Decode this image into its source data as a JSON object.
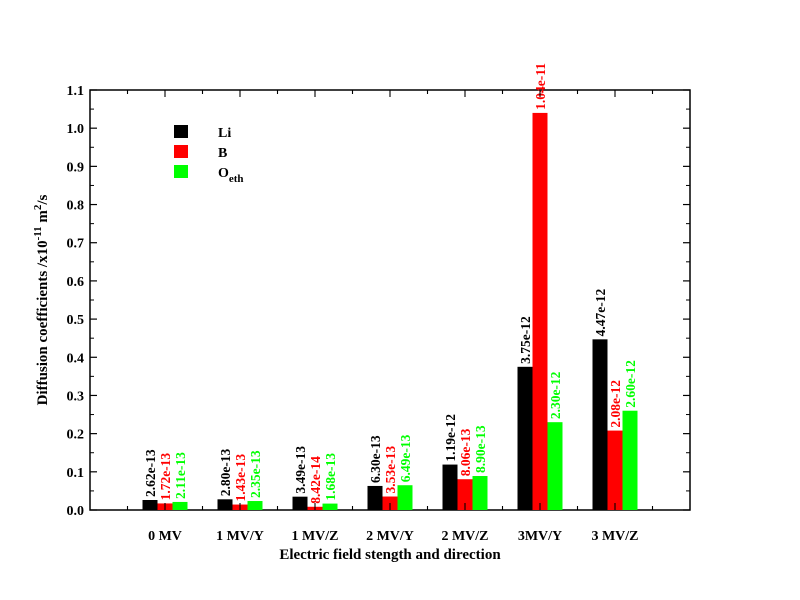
{
  "chart_data": {
    "type": "bar",
    "title": "",
    "xlabel": "Electric field stength and direction",
    "ylabel_main": "Diffusion coefficients /x10",
    "ylabel_exp": "-11",
    "ylabel_unit_base": " m",
    "ylabel_unit_exp": "2",
    "ylabel_unit_tail": "/s",
    "ylim": [
      0,
      1.1
    ],
    "yticks": [
      "0.0",
      "0.1",
      "0.2",
      "0.3",
      "0.4",
      "0.5",
      "0.6",
      "0.7",
      "0.8",
      "0.9",
      "1.0",
      "1.1"
    ],
    "grid": false,
    "legend_position": "top-left",
    "categories": [
      "0 MV",
      "1 MV/Y",
      "1 MV/Z",
      "2 MV/Y",
      "2 MV/Z",
      "3MV/Y",
      "3 MV/Z"
    ],
    "series": [
      {
        "name": "Li",
        "name_base": "Li",
        "name_sub": "",
        "color": "#000000",
        "values": [
          0.0262,
          0.028,
          0.0349,
          0.063,
          0.119,
          0.375,
          0.447
        ],
        "labels": [
          "2.62e-13",
          "2.80e-13",
          "3.49e-13",
          "6.30e-13",
          "1.19e-12",
          "3.75e-12",
          "4.47e-12"
        ]
      },
      {
        "name": "B",
        "name_base": "B",
        "name_sub": "",
        "color": "#ff0000",
        "values": [
          0.0172,
          0.0143,
          0.00842,
          0.0353,
          0.0806,
          1.04,
          0.208
        ],
        "labels": [
          "1.72e-13",
          "1.43e-13",
          "8.42e-14",
          "3.53e-13",
          "8.06e-13",
          "1.04e-11",
          "2.08e-12"
        ]
      },
      {
        "name": "Oeth",
        "name_base": "O",
        "name_sub": "eth",
        "color": "#00ff00",
        "values": [
          0.0211,
          0.0235,
          0.0168,
          0.0649,
          0.089,
          0.23,
          0.26
        ],
        "labels": [
          "2.11e-13",
          "2.35e-13",
          "1.68e-13",
          "6.49e-13",
          "8.90e-13",
          "2.30e-12",
          "2.60e-12"
        ]
      }
    ]
  }
}
